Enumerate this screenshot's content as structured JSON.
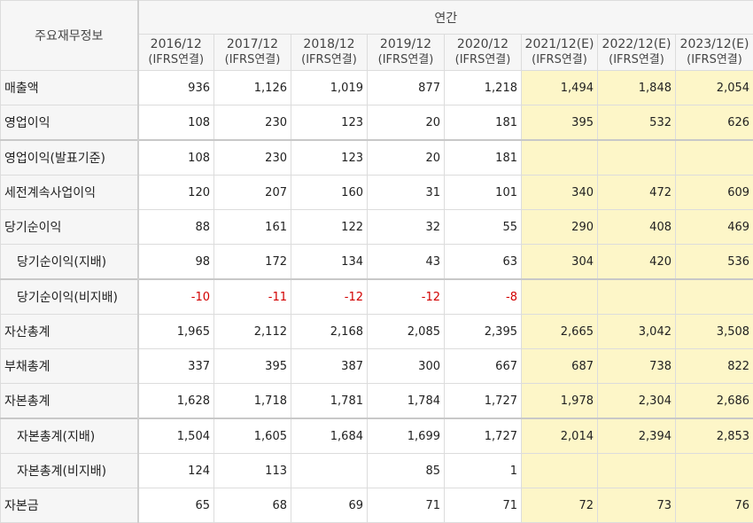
{
  "header": {
    "row_label": "주요재무정보",
    "group_label": "연간",
    "periods": [
      {
        "year": "2016/12",
        "basis": "(IFRS연결)",
        "estimate": false
      },
      {
        "year": "2017/12",
        "basis": "(IFRS연결)",
        "estimate": false
      },
      {
        "year": "2018/12",
        "basis": "(IFRS연결)",
        "estimate": false
      },
      {
        "year": "2019/12",
        "basis": "(IFRS연결)",
        "estimate": false
      },
      {
        "year": "2020/12",
        "basis": "(IFRS연결)",
        "estimate": false
      },
      {
        "year": "2021/12(E)",
        "basis": "(IFRS연결)",
        "estimate": true
      },
      {
        "year": "2022/12(E)",
        "basis": "(IFRS연결)",
        "estimate": true
      },
      {
        "year": "2023/12(E)",
        "basis": "(IFRS연결)",
        "estimate": true
      }
    ]
  },
  "rows": [
    {
      "label": "매출액",
      "values": [
        "936",
        "1,126",
        "1,019",
        "877",
        "1,218",
        "1,494",
        "1,848",
        "2,054"
      ]
    },
    {
      "label": "영업이익",
      "values": [
        "108",
        "230",
        "123",
        "20",
        "181",
        "395",
        "532",
        "626"
      ]
    },
    {
      "label": "영업이익(발표기준)",
      "values": [
        "108",
        "230",
        "123",
        "20",
        "181",
        "",
        "",
        ""
      ]
    },
    {
      "label": "세전계속사업이익",
      "values": [
        "120",
        "207",
        "160",
        "31",
        "101",
        "340",
        "472",
        "609"
      ]
    },
    {
      "label": "당기순이익",
      "values": [
        "88",
        "161",
        "122",
        "32",
        "55",
        "290",
        "408",
        "469"
      ]
    },
    {
      "label": "당기순이익(지배)",
      "values": [
        "98",
        "172",
        "134",
        "43",
        "63",
        "304",
        "420",
        "536"
      ]
    },
    {
      "label": "당기순이익(비지배)",
      "values": [
        "-10",
        "-11",
        "-12",
        "-12",
        "-8",
        "",
        "",
        ""
      ]
    },
    {
      "label": "자산총계",
      "values": [
        "1,965",
        "2,112",
        "2,168",
        "2,085",
        "2,395",
        "2,665",
        "3,042",
        "3,508"
      ]
    },
    {
      "label": "부채총계",
      "values": [
        "337",
        "395",
        "387",
        "300",
        "667",
        "687",
        "738",
        "822"
      ]
    },
    {
      "label": "자본총계",
      "values": [
        "1,628",
        "1,718",
        "1,781",
        "1,784",
        "1,727",
        "1,978",
        "2,304",
        "2,686"
      ]
    },
    {
      "label": "자본총계(지배)",
      "values": [
        "1,504",
        "1,605",
        "1,684",
        "1,699",
        "1,727",
        "2,014",
        "2,394",
        "2,853"
      ]
    },
    {
      "label": "자본총계(비지배)",
      "values": [
        "124",
        "113",
        "",
        "85",
        "1",
        "",
        "",
        ""
      ]
    },
    {
      "label": "자본금",
      "values": [
        "65",
        "68",
        "69",
        "71",
        "71",
        "72",
        "73",
        "76"
      ]
    }
  ],
  "colors": {
    "estimate_bg": "#fdf6c8",
    "negative_text": "#d20000",
    "header_bg": "#f6f6f6"
  }
}
